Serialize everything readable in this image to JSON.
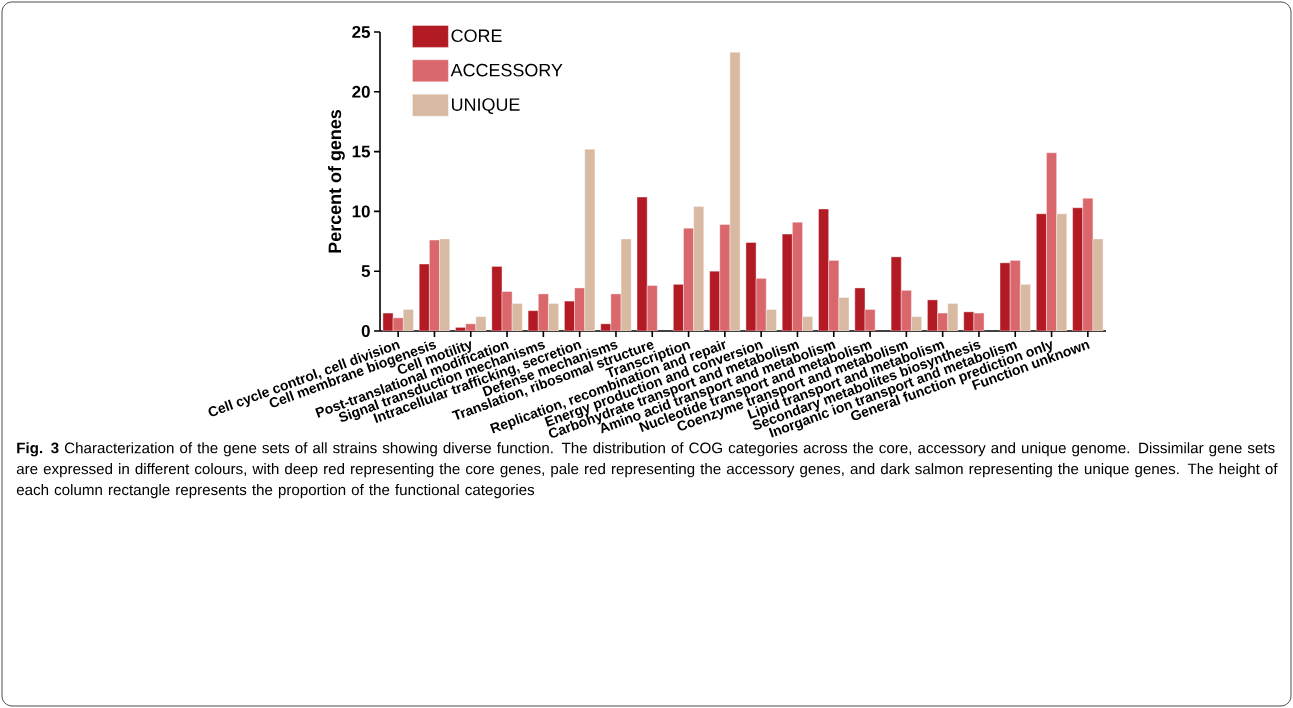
{
  "chart_data": {
    "type": "bar",
    "ylabel": "Percent of genes",
    "categories": [
      "Cell cycle control, cell division",
      "Cell membrane biogenesis",
      "Cell motility",
      "Post-translational modification",
      "Signal transduction mechanisms",
      "Intracellular trafficking, secretion",
      "Defense mechanisms",
      "Translation, ribosomal structure",
      "Transcription",
      "Replication, recombination and repair",
      "Energy production and conversion",
      "Carbohydrate transport and metabolism",
      "Amino acid transport and metabolism",
      "Nucleotide transport and metabolism",
      "Coenzyme transport and metabolism",
      "Lipid transport and metabolism",
      "Secondary metabolites biosynthesis",
      "Inorganic ion transport and metabolism",
      "General function prediction only",
      "Function unknown"
    ],
    "series": [
      {
        "name": "CORE",
        "color": "#b31b24",
        "values": [
          1.5,
          5.6,
          0.3,
          5.4,
          1.7,
          2.5,
          0.6,
          11.2,
          3.9,
          5.0,
          7.4,
          8.1,
          10.2,
          3.6,
          6.2,
          2.6,
          1.6,
          5.7,
          9.8,
          10.3
        ]
      },
      {
        "name": "ACCESSORY",
        "color": "#d9676b",
        "values": [
          1.1,
          7.6,
          0.6,
          3.3,
          3.1,
          3.6,
          3.1,
          3.8,
          8.6,
          8.9,
          4.4,
          9.1,
          5.9,
          1.8,
          3.4,
          1.5,
          1.5,
          5.9,
          14.9,
          11.1
        ]
      },
      {
        "name": "UNIQUE",
        "color": "#d8b9a2",
        "values": [
          1.8,
          7.7,
          1.2,
          2.3,
          2.3,
          15.2,
          7.7,
          null,
          10.4,
          23.3,
          1.8,
          1.2,
          2.8,
          null,
          1.2,
          2.3,
          null,
          3.9,
          9.8,
          7.7
        ]
      }
    ],
    "ylim": [
      0,
      25
    ],
    "yticks": [
      0,
      5,
      10,
      15,
      20,
      25
    ],
    "legend": "top left",
    "annotations": [
      "**Fig. 3** Characterization of the gene sets of all strains showing diverse function. The distribution of COG categories across the core, accessory and unique genome. Dissimilar gene sets are expressed in different colours, with deep red representing the core genes, pale red representing the accessory genes, and dark salmon representing the unique genes. The height of each column rectangle represents the proportion of the functional categories"
    ]
  }
}
